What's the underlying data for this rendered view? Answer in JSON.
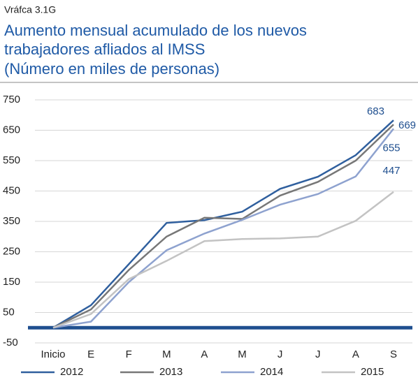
{
  "chart_data": {
    "type": "line",
    "label": "Vráfca  3.1G",
    "title": [
      "Aumento  mensual  acumulado de los  nuevos",
      "trabajadores afliados  al IMSS"
    ],
    "subtitle": "(Número  en  miles  de  personas)",
    "categories": [
      "Inicio",
      "E",
      "F",
      "M",
      "A",
      "M",
      "J",
      "J",
      "A",
      "S"
    ],
    "series": [
      {
        "name": "2012",
        "color": "#2f5f9e",
        "values": [
          0,
          74,
          209,
          345,
          354,
          382,
          457,
          497,
          568,
          683
        ]
      },
      {
        "name": "2013",
        "color": "#777777",
        "values": [
          0,
          60,
          190,
          300,
          362,
          358,
          435,
          480,
          550,
          669
        ]
      },
      {
        "name": "2014",
        "color": "#8ea2cf",
        "values": [
          0,
          20,
          150,
          255,
          310,
          355,
          405,
          440,
          498,
          655
        ]
      },
      {
        "name": "2015",
        "color": "#c3c3c3",
        "values": [
          0,
          45,
          160,
          220,
          285,
          292,
          294,
          300,
          352,
          447
        ]
      }
    ],
    "ylim": [
      -50,
      750
    ],
    "yticks": [
      -50,
      50,
      150,
      250,
      350,
      450,
      550,
      650,
      750
    ],
    "grid": true,
    "zero_line_color": "#1f4f8f",
    "legend": "bottom"
  }
}
